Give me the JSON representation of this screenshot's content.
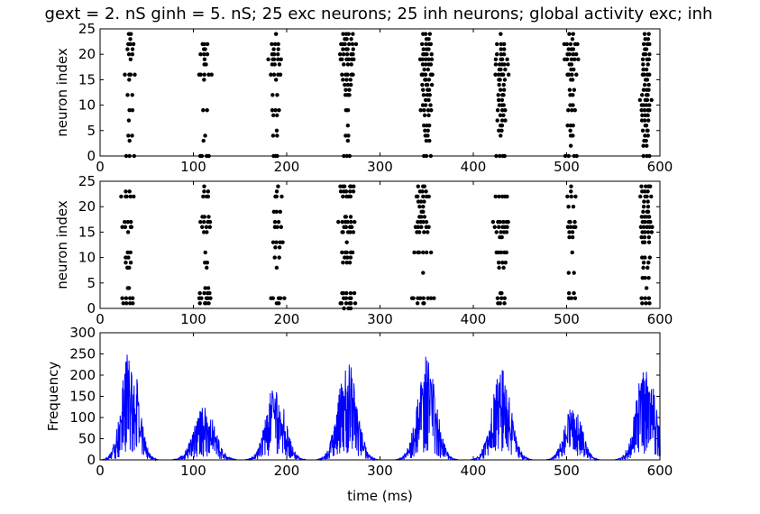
{
  "title": "gext = 2. nS ginh = 5. nS; 25 exc neurons; 25 inh neurons; global activity exc; inh",
  "chart_data": [
    {
      "type": "scatter",
      "name": "exc_raster",
      "xlabel": "",
      "ylabel": "neuron index",
      "xlim": [
        0,
        600
      ],
      "ylim": [
        0,
        25
      ],
      "xticks": [
        0,
        100,
        200,
        300,
        400,
        500,
        600
      ],
      "yticks": [
        0,
        5,
        10,
        15,
        20,
        25
      ],
      "marker_color": "#000000",
      "bursts": [
        {
          "t": 32,
          "spikes": [
            [
              24,
              2
            ],
            [
              23,
              1
            ],
            [
              22,
              3
            ],
            [
              21,
              2
            ],
            [
              20,
              2
            ],
            [
              19,
              1
            ],
            [
              16,
              4
            ],
            [
              15,
              1
            ],
            [
              12,
              2
            ],
            [
              9,
              2
            ],
            [
              7,
              1
            ],
            [
              4,
              2
            ],
            [
              3,
              1
            ],
            [
              0,
              3
            ]
          ]
        },
        {
          "t": 112,
          "spikes": [
            [
              22,
              3
            ],
            [
              21,
              2
            ],
            [
              20,
              3
            ],
            [
              19,
              1
            ],
            [
              18,
              2
            ],
            [
              16,
              5
            ],
            [
              15,
              1
            ],
            [
              9,
              2
            ],
            [
              4,
              1
            ],
            [
              3,
              1
            ],
            [
              0,
              4
            ]
          ]
        },
        {
          "t": 188,
          "spikes": [
            [
              24,
              1
            ],
            [
              22,
              3
            ],
            [
              21,
              2
            ],
            [
              20,
              3
            ],
            [
              19,
              5
            ],
            [
              18,
              3
            ],
            [
              16,
              4
            ],
            [
              15,
              1
            ],
            [
              12,
              2
            ],
            [
              9,
              3
            ],
            [
              8,
              2
            ],
            [
              5,
              1
            ],
            [
              4,
              2
            ],
            [
              0,
              3
            ]
          ]
        },
        {
          "t": 265,
          "spikes": [
            [
              24,
              4
            ],
            [
              23,
              3
            ],
            [
              22,
              6
            ],
            [
              21,
              4
            ],
            [
              20,
              5
            ],
            [
              19,
              6
            ],
            [
              18,
              3
            ],
            [
              16,
              5
            ],
            [
              15,
              3
            ],
            [
              14,
              3
            ],
            [
              13,
              2
            ],
            [
              12,
              3
            ],
            [
              9,
              2
            ],
            [
              6,
              1
            ],
            [
              4,
              2
            ],
            [
              3,
              1
            ],
            [
              0,
              3
            ]
          ]
        },
        {
          "t": 350,
          "spikes": [
            [
              24,
              3
            ],
            [
              23,
              2
            ],
            [
              22,
              4
            ],
            [
              21,
              3
            ],
            [
              20,
              4
            ],
            [
              19,
              5
            ],
            [
              18,
              4
            ],
            [
              17,
              2
            ],
            [
              16,
              5
            ],
            [
              15,
              3
            ],
            [
              14,
              4
            ],
            [
              13,
              3
            ],
            [
              12,
              3
            ],
            [
              11,
              2
            ],
            [
              10,
              3
            ],
            [
              9,
              4
            ],
            [
              8,
              2
            ],
            [
              6,
              3
            ],
            [
              5,
              2
            ],
            [
              4,
              2
            ],
            [
              3,
              2
            ],
            [
              0,
              3
            ]
          ]
        },
        {
          "t": 430,
          "spikes": [
            [
              24,
              1
            ],
            [
              22,
              3
            ],
            [
              21,
              2
            ],
            [
              20,
              3
            ],
            [
              19,
              4
            ],
            [
              18,
              5
            ],
            [
              17,
              3
            ],
            [
              16,
              5
            ],
            [
              15,
              3
            ],
            [
              14,
              2
            ],
            [
              13,
              2
            ],
            [
              12,
              3
            ],
            [
              11,
              2
            ],
            [
              10,
              3
            ],
            [
              9,
              3
            ],
            [
              8,
              2
            ],
            [
              7,
              3
            ],
            [
              6,
              2
            ],
            [
              5,
              2
            ],
            [
              4,
              1
            ],
            [
              0,
              4
            ]
          ]
        },
        {
          "t": 505,
          "spikes": [
            [
              24,
              2
            ],
            [
              23,
              1
            ],
            [
              22,
              5
            ],
            [
              21,
              3
            ],
            [
              20,
              4
            ],
            [
              19,
              5
            ],
            [
              18,
              2
            ],
            [
              17,
              2
            ],
            [
              16,
              4
            ],
            [
              15,
              2
            ],
            [
              13,
              2
            ],
            [
              12,
              2
            ],
            [
              10,
              2
            ],
            [
              9,
              3
            ],
            [
              6,
              3
            ],
            [
              5,
              1
            ],
            [
              4,
              2
            ],
            [
              2,
              1
            ],
            [
              0,
              4
            ]
          ]
        },
        {
          "t": 585,
          "spikes": [
            [
              24,
              2
            ],
            [
              23,
              2
            ],
            [
              22,
              3
            ],
            [
              21,
              2
            ],
            [
              20,
              3
            ],
            [
              19,
              3
            ],
            [
              18,
              2
            ],
            [
              17,
              2
            ],
            [
              16,
              4
            ],
            [
              15,
              2
            ],
            [
              14,
              2
            ],
            [
              13,
              3
            ],
            [
              12,
              3
            ],
            [
              11,
              4
            ],
            [
              10,
              4
            ],
            [
              9,
              4
            ],
            [
              8,
              3
            ],
            [
              7,
              3
            ],
            [
              6,
              2
            ],
            [
              5,
              3
            ],
            [
              4,
              2
            ],
            [
              3,
              2
            ],
            [
              2,
              2
            ],
            [
              0,
              3
            ]
          ]
        }
      ]
    },
    {
      "type": "scatter",
      "name": "inh_raster",
      "xlabel": "",
      "ylabel": "neuron index",
      "xlim": [
        0,
        600
      ],
      "ylim": [
        0,
        25
      ],
      "xticks": [
        0,
        100,
        200,
        300,
        400,
        500,
        600
      ],
      "yticks": [
        0,
        5,
        10,
        15,
        20,
        25
      ],
      "marker_color": "#000000",
      "bursts": [
        {
          "t": 30,
          "spikes": [
            [
              23,
              2
            ],
            [
              22,
              5
            ],
            [
              17,
              3
            ],
            [
              16,
              4
            ],
            [
              15,
              1
            ],
            [
              11,
              2
            ],
            [
              10,
              2
            ],
            [
              9,
              2
            ],
            [
              8,
              2
            ],
            [
              4,
              2
            ],
            [
              2,
              4
            ],
            [
              1,
              4
            ]
          ]
        },
        {
          "t": 113,
          "spikes": [
            [
              24,
              1
            ],
            [
              23,
              2
            ],
            [
              22,
              3
            ],
            [
              18,
              3
            ],
            [
              17,
              4
            ],
            [
              16,
              3
            ],
            [
              15,
              2
            ],
            [
              11,
              1
            ],
            [
              9,
              2
            ],
            [
              8,
              1
            ],
            [
              4,
              2
            ],
            [
              3,
              4
            ],
            [
              2,
              5
            ],
            [
              1,
              4
            ]
          ]
        },
        {
          "t": 190,
          "spikes": [
            [
              24,
              1
            ],
            [
              23,
              1
            ],
            [
              22,
              3
            ],
            [
              19,
              3
            ],
            [
              17,
              2
            ],
            [
              16,
              3
            ],
            [
              13,
              4
            ],
            [
              12,
              2
            ],
            [
              10,
              2
            ],
            [
              8,
              1
            ],
            [
              2,
              5
            ],
            [
              1,
              2
            ]
          ]
        },
        {
          "t": 265,
          "spikes": [
            [
              24,
              6
            ],
            [
              23,
              5
            ],
            [
              22,
              4
            ],
            [
              18,
              3
            ],
            [
              17,
              6
            ],
            [
              16,
              4
            ],
            [
              15,
              5
            ],
            [
              13,
              1
            ],
            [
              11,
              5
            ],
            [
              10,
              3
            ],
            [
              9,
              3
            ],
            [
              3,
              5
            ],
            [
              2,
              4
            ],
            [
              1,
              6
            ],
            [
              0,
              3
            ]
          ]
        },
        {
          "t": 345,
          "spikes": [
            [
              24,
              3
            ],
            [
              23,
              3
            ],
            [
              22,
              5
            ],
            [
              21,
              3
            ],
            [
              20,
              2
            ],
            [
              19,
              2
            ],
            [
              18,
              3
            ],
            [
              17,
              4
            ],
            [
              16,
              5
            ],
            [
              15,
              4
            ],
            [
              11,
              6
            ],
            [
              7,
              1
            ],
            [
              2,
              8
            ],
            [
              1,
              3
            ]
          ]
        },
        {
          "t": 430,
          "spikes": [
            [
              22,
              5
            ],
            [
              17,
              6
            ],
            [
              16,
              5
            ],
            [
              15,
              4
            ],
            [
              14,
              2
            ],
            [
              11,
              5
            ],
            [
              9,
              3
            ],
            [
              8,
              2
            ],
            [
              3,
              2
            ],
            [
              2,
              3
            ],
            [
              1,
              3
            ]
          ]
        },
        {
          "t": 505,
          "spikes": [
            [
              24,
              1
            ],
            [
              23,
              1
            ],
            [
              22,
              3
            ],
            [
              20,
              2
            ],
            [
              17,
              3
            ],
            [
              16,
              4
            ],
            [
              15,
              2
            ],
            [
              14,
              2
            ],
            [
              11,
              1
            ],
            [
              7,
              2
            ],
            [
              3,
              2
            ],
            [
              2,
              3
            ]
          ]
        },
        {
          "t": 585,
          "spikes": [
            [
              24,
              4
            ],
            [
              23,
              3
            ],
            [
              22,
              4
            ],
            [
              21,
              2
            ],
            [
              20,
              2
            ],
            [
              19,
              3
            ],
            [
              18,
              4
            ],
            [
              17,
              4
            ],
            [
              16,
              5
            ],
            [
              15,
              4
            ],
            [
              14,
              3
            ],
            [
              13,
              3
            ],
            [
              10,
              3
            ],
            [
              9,
              2
            ],
            [
              8,
              2
            ],
            [
              6,
              3
            ],
            [
              4,
              1
            ],
            [
              2,
              3
            ],
            [
              1,
              3
            ]
          ]
        }
      ]
    },
    {
      "type": "line",
      "name": "global_activity",
      "xlabel": "time (ms)",
      "ylabel": "Frequency",
      "xlim": [
        0,
        600
      ],
      "ylim": [
        0,
        300
      ],
      "xticks": [
        0,
        100,
        200,
        300,
        400,
        500,
        600
      ],
      "yticks": [
        0,
        50,
        100,
        150,
        200,
        250,
        300
      ],
      "line_color": "#0000ff",
      "peaks": [
        {
          "t": 32,
          "height": 270,
          "width": 9
        },
        {
          "t": 112,
          "height": 130,
          "width": 11
        },
        {
          "t": 188,
          "height": 185,
          "width": 10
        },
        {
          "t": 265,
          "height": 240,
          "width": 10
        },
        {
          "t": 350,
          "height": 245,
          "width": 10
        },
        {
          "t": 430,
          "height": 215,
          "width": 10
        },
        {
          "t": 507,
          "height": 135,
          "width": 9
        },
        {
          "t": 585,
          "height": 240,
          "width": 10
        }
      ]
    }
  ]
}
